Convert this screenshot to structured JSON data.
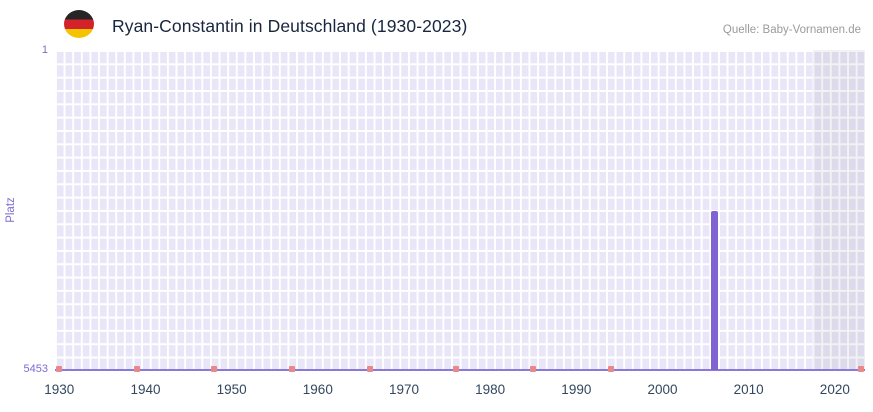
{
  "header": {
    "source": "Quelle: Baby-Vornamen.de"
  },
  "chart_data": {
    "type": "bar",
    "title": "Ryan-Constantin in Deutschland (1930-2023)",
    "xlabel": "",
    "ylabel": "Platz",
    "x_range": [
      1930,
      2023
    ],
    "x_ticks": [
      1930,
      1940,
      1950,
      1960,
      1970,
      1980,
      1990,
      2000,
      2010,
      2020
    ],
    "y_axis": {
      "top_label": "1",
      "bottom_label": "5453",
      "min": 1,
      "max": 5453,
      "inverted": true
    },
    "grid": true,
    "legend": false,
    "bars": [
      {
        "year": 2006,
        "platz": 2750
      }
    ],
    "low_rank_marker_years": [
      1930,
      1939,
      1948,
      1957,
      1966,
      1976,
      1985,
      1994,
      2023
    ],
    "highlight_band": {
      "from_year": 2018,
      "to_year": 2023
    },
    "colors": {
      "bar": "#7f63d2",
      "marker": "#e8888a",
      "plot_bg": "#e9e6f7",
      "grid_line": "#ffffff",
      "axis_line": "#8a79db",
      "tick_label": "#33475f",
      "axis_accent": "#7d6bd0",
      "highlight_band": "rgba(72,72,98,0.07)",
      "title": "#18263e",
      "source": "#9b9b9b",
      "flag_black": "#262626",
      "flag_red": "#d2232a",
      "flag_gold": "#f5c400"
    }
  }
}
